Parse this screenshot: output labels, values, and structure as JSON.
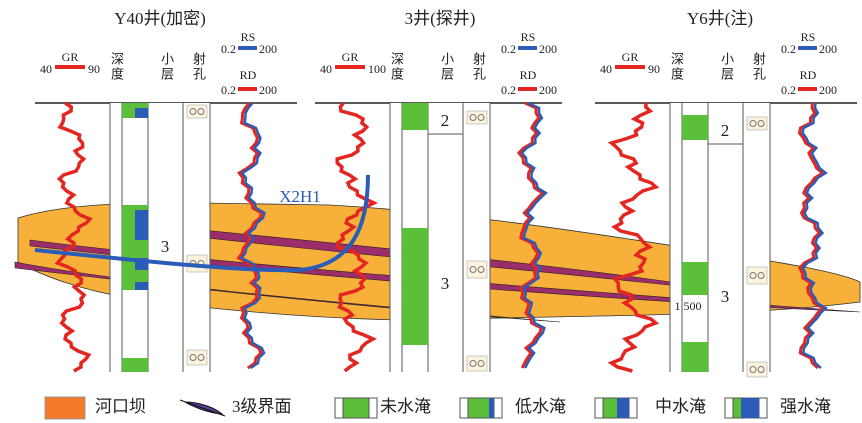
{
  "wells": [
    {
      "title": "Y40井(加密)",
      "gr": {
        "label": "GR",
        "min": "40",
        "max": "90"
      },
      "depth": "深度",
      "layer": "小层",
      "perforation": "射孔",
      "rs": {
        "label": "RS",
        "min": "0.2",
        "max": "200"
      },
      "rd": {
        "label": "RD",
        "min": "0.2",
        "max": "200"
      },
      "layers": [
        "3"
      ]
    },
    {
      "title": "3井(探井)",
      "gr": {
        "label": "GR",
        "min": "40",
        "max": "100"
      },
      "depth": "深度",
      "layer": "小层",
      "perforation": "射孔",
      "rs": {
        "label": "RS",
        "min": "0.2",
        "max": "200"
      },
      "rd": {
        "label": "RD",
        "min": "0.2",
        "max": "200"
      },
      "layers": [
        "2",
        "3"
      ]
    },
    {
      "title": "Y6井(注)",
      "gr": {
        "label": "GR",
        "min": "40",
        "max": "90"
      },
      "depth": "深度",
      "layer": "小层",
      "perforation": "射孔",
      "rs": {
        "label": "RS",
        "min": "0.2",
        "max": "200"
      },
      "rd": {
        "label": "RD",
        "min": "0.2",
        "max": "200"
      },
      "layers": [
        "2",
        "3"
      ]
    }
  ],
  "annotations": {
    "well_path": "X2H1",
    "depth_mark": "1 500"
  },
  "legend": [
    "河口坝",
    "3级界面",
    "未水淹",
    "低水淹",
    "中水淹",
    "强水淹"
  ]
}
